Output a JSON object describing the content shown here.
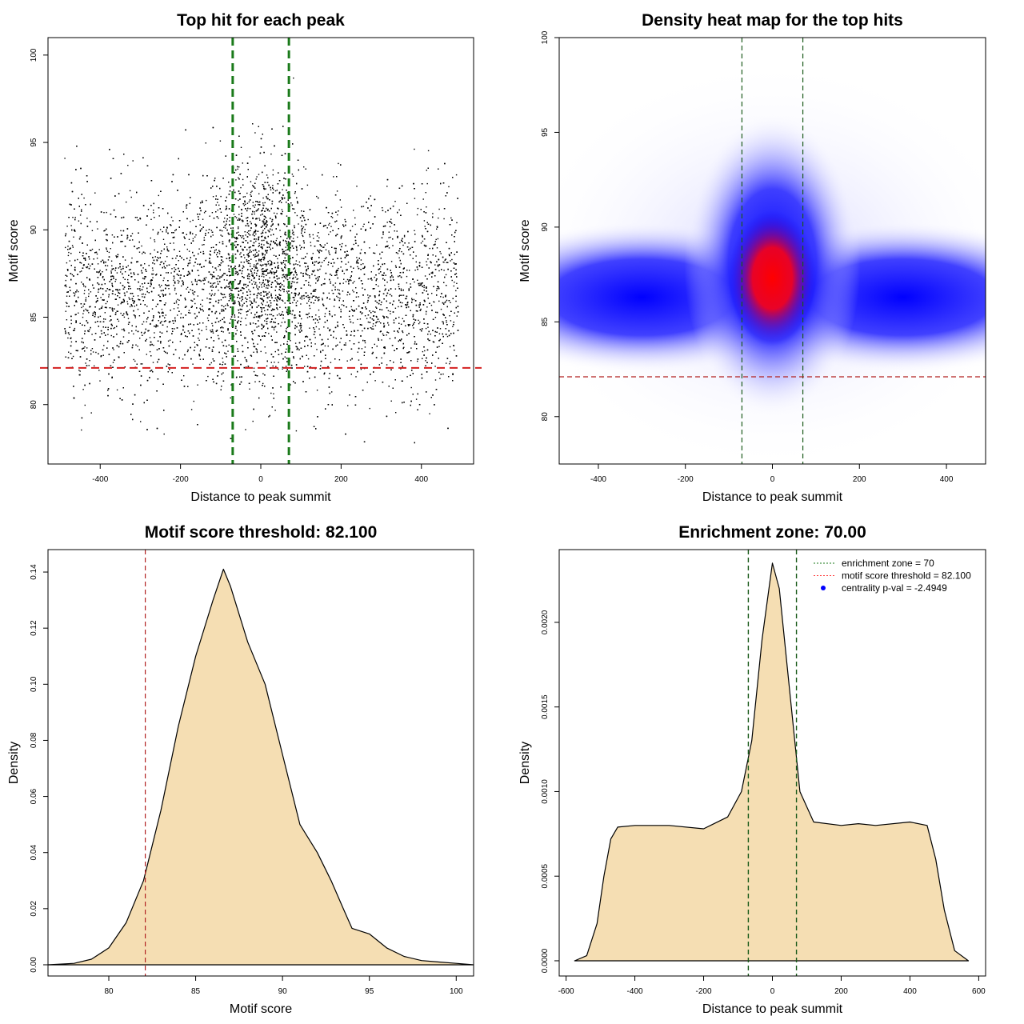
{
  "chart_data": [
    {
      "type": "scatter",
      "title": "Top hit for each peak",
      "xlabel": "Distance to peak summit",
      "ylabel": "Motif score",
      "xlim": [
        -530,
        530
      ],
      "ylim": [
        76.6,
        101
      ],
      "xticks": [
        "-400",
        "-200",
        "0",
        "200",
        "400"
      ],
      "xtick_values": [
        -400,
        -200,
        0,
        200,
        400
      ],
      "yticks": [
        "80",
        "85",
        "90",
        "95",
        "100"
      ],
      "ytick_values": [
        80,
        85,
        90,
        95,
        100
      ],
      "points_summary": {
        "n_shown": 9000,
        "x_range": [
          -490,
          490
        ],
        "background_score_mean": 86.5,
        "background_score_sd": 2.8,
        "central_score_mean": 88.5,
        "central_score_sd": 3.0,
        "central_fraction": 0.2,
        "central_sd": 60
      },
      "vlines": [
        -70,
        70
      ],
      "vline_color": "#1a7a1a",
      "hline": 82.1,
      "hline_color": "#d42020"
    },
    {
      "type": "heatmap",
      "title": "Density heat map for the top hits",
      "xlabel": "Distance to peak summit",
      "ylabel": "Motif score",
      "xlim": [
        -490,
        490
      ],
      "ylim": [
        77.5,
        100
      ],
      "xticks": [
        "-400",
        "-200",
        "0",
        "200",
        "400"
      ],
      "xtick_values": [
        -400,
        -200,
        0,
        200,
        400
      ],
      "yticks": [
        "80",
        "85",
        "90",
        "95",
        "100"
      ],
      "ytick_values": [
        80,
        85,
        90,
        95,
        100
      ],
      "density_peak": {
        "x": 0,
        "y": 87.3
      },
      "colors": [
        "#ffffff",
        "#0000ff",
        "#ff0000"
      ],
      "vlines": [
        -70,
        70
      ],
      "hline": 82.1
    },
    {
      "type": "area",
      "title": "Motif score threshold: 82.100",
      "xlabel": "Motif score",
      "ylabel": "Density",
      "xlim": [
        76.5,
        101
      ],
      "ylim": [
        -0.004,
        0.148
      ],
      "xticks": [
        "80",
        "85",
        "90",
        "95",
        "100"
      ],
      "xtick_values": [
        80,
        85,
        90,
        95,
        100
      ],
      "yticks": [
        "0.00",
        "0.02",
        "0.04",
        "0.06",
        "0.08",
        "0.10",
        "0.12",
        "0.14"
      ],
      "ytick_values": [
        0,
        0.02,
        0.04,
        0.06,
        0.08,
        0.1,
        0.12,
        0.14
      ],
      "x": [
        76.5,
        78,
        79,
        80,
        81,
        82,
        83,
        84,
        85,
        86,
        86.6,
        87,
        88,
        89,
        90,
        91,
        92,
        92.8,
        93.5,
        94,
        95,
        96,
        97,
        98,
        99,
        100,
        101
      ],
      "y": [
        0,
        0.0005,
        0.002,
        0.006,
        0.015,
        0.03,
        0.055,
        0.085,
        0.11,
        0.13,
        0.141,
        0.135,
        0.115,
        0.1,
        0.075,
        0.05,
        0.04,
        0.03,
        0.02,
        0.013,
        0.011,
        0.006,
        0.003,
        0.0015,
        0.001,
        0.0005,
        0
      ],
      "fill": "#f5deb3",
      "vline": 82.1,
      "vline_color": "#b22222"
    },
    {
      "type": "area",
      "title": "Enrichment zone: 70.00",
      "xlabel": "Distance to peak summit",
      "ylabel": "Density",
      "xlim": [
        -620,
        620
      ],
      "ylim": [
        -9e-05,
        0.00243
      ],
      "xticks": [
        "-600",
        "-400",
        "-200",
        "0",
        "200",
        "400",
        "600"
      ],
      "xtick_values": [
        -600,
        -400,
        -200,
        0,
        200,
        400,
        600
      ],
      "yticks": [
        "0.0000",
        "0.0005",
        "0.0010",
        "0.0015",
        "0.0020"
      ],
      "ytick_values": [
        0,
        0.0005,
        0.001,
        0.0015,
        0.002
      ],
      "x": [
        -575,
        -540,
        -510,
        -490,
        -470,
        -450,
        -400,
        -300,
        -200,
        -130,
        -90,
        -60,
        -30,
        0,
        20,
        50,
        80,
        120,
        200,
        250,
        300,
        400,
        450,
        475,
        500,
        530,
        570
      ],
      "y": [
        0,
        3e-05,
        0.00022,
        0.0005,
        0.00072,
        0.00079,
        0.0008,
        0.0008,
        0.00078,
        0.00085,
        0.001,
        0.0013,
        0.0019,
        0.00235,
        0.0022,
        0.0016,
        0.001,
        0.00082,
        0.0008,
        0.00081,
        0.0008,
        0.00082,
        0.0008,
        0.0006,
        0.0003,
        6e-05,
        0
      ],
      "fill": "#f5deb3",
      "vlines": [
        -70,
        70
      ],
      "legend": {
        "position": "top-right",
        "entries": [
          "enrichment zone = 70",
          "motif score threshold = 82.100",
          "centrality p-val = -2.4949"
        ],
        "colors": [
          "#1a7a1a",
          "#ff4040",
          "#0000ff"
        ]
      }
    }
  ]
}
